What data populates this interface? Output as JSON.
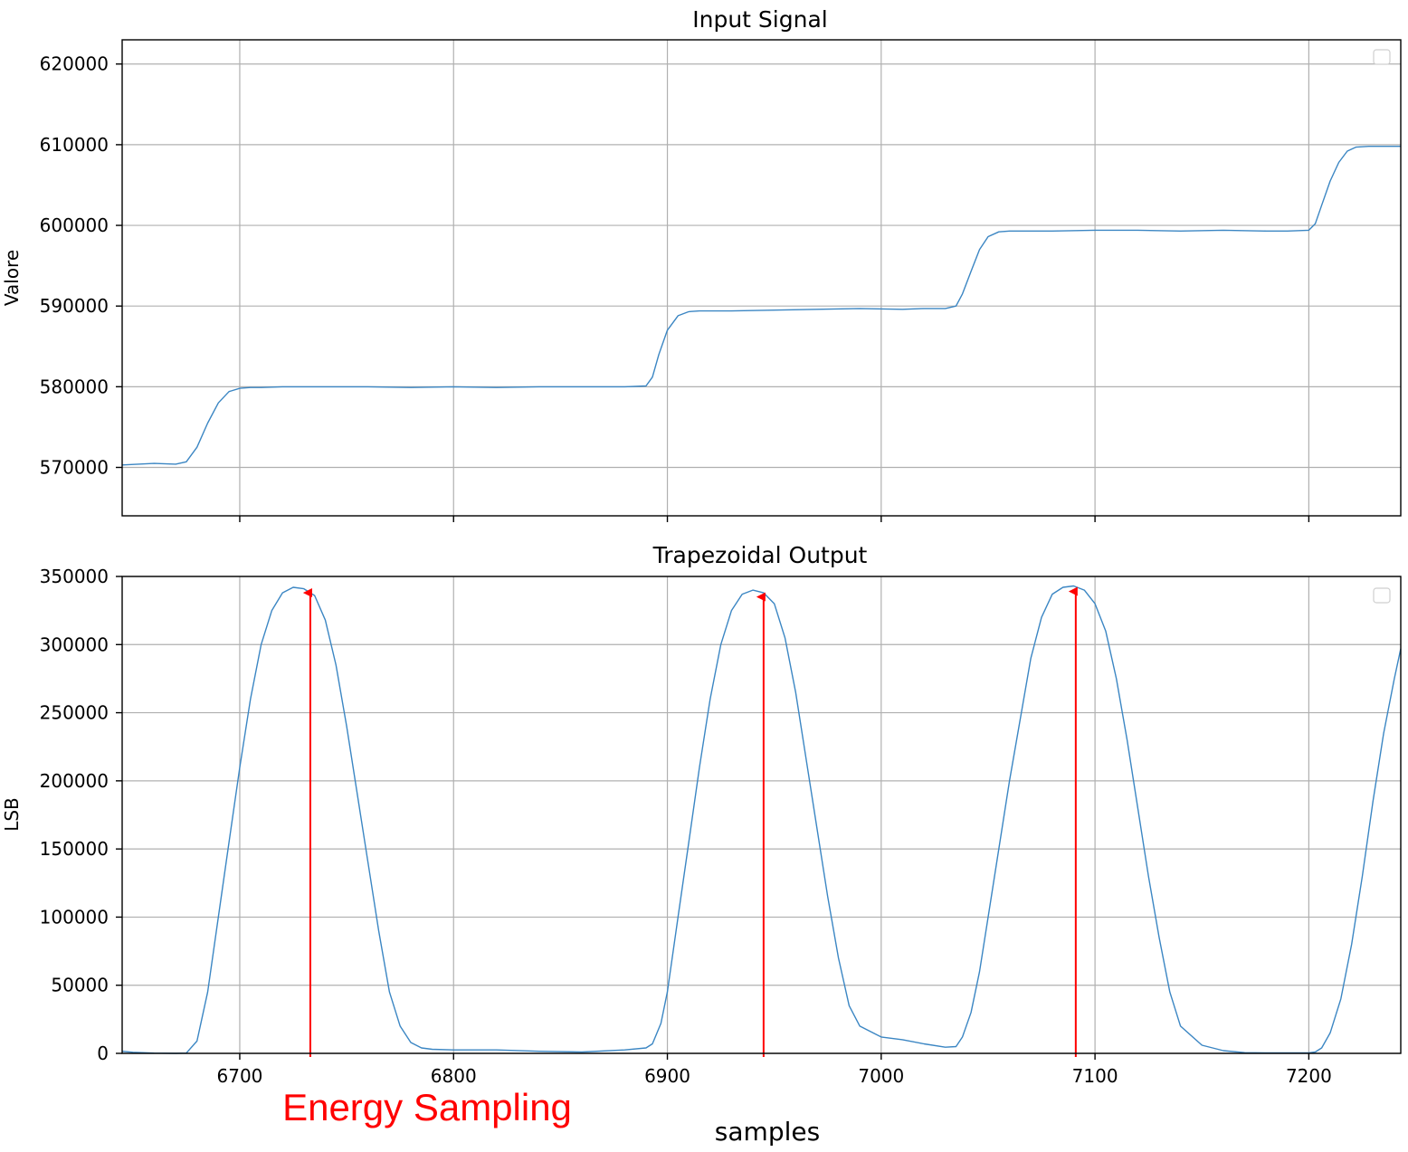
{
  "colors": {
    "series": "#3b86c3",
    "arrow": "#ff0000"
  },
  "annotation": {
    "text": "Energy Sampling"
  },
  "xlabel": "samples",
  "chart_data": [
    {
      "type": "line",
      "title": "Input Signal",
      "xlabel": "",
      "ylabel": "Valore",
      "xlim": [
        6645,
        7243
      ],
      "ylim": [
        564000,
        623000
      ],
      "xticks": [
        6700,
        6800,
        6900,
        7000,
        7100,
        7200
      ],
      "xtick_labels_visible": false,
      "yticks": [
        570000,
        580000,
        590000,
        600000,
        610000,
        620000
      ],
      "ytick_labels": [
        "570000",
        "580000",
        "590000",
        "600000",
        "610000",
        "620000"
      ],
      "grid": true,
      "legend": "top-right (empty)",
      "series": [
        {
          "x": [
            6645,
            6660,
            6670,
            6675,
            6680,
            6685,
            6690,
            6695,
            6700,
            6705,
            6710,
            6720,
            6740,
            6760,
            6780,
            6800,
            6820,
            6840,
            6860,
            6880,
            6890,
            6893,
            6896,
            6900,
            6905,
            6910,
            6915,
            6930,
            6950,
            6970,
            6990,
            7010,
            7020,
            7030,
            7035,
            7038,
            7042,
            7046,
            7050,
            7055,
            7060,
            7080,
            7100,
            7120,
            7140,
            7160,
            7180,
            7190,
            7200,
            7203,
            7206,
            7210,
            7214,
            7218,
            7222,
            7228,
            7243
          ],
          "y": [
            570300,
            570500,
            570400,
            570700,
            572500,
            575500,
            578000,
            579400,
            579800,
            579900,
            579900,
            580000,
            580000,
            580000,
            579900,
            580000,
            579900,
            580000,
            580000,
            580000,
            580100,
            581200,
            584000,
            587000,
            588800,
            589300,
            589400,
            589400,
            589500,
            589600,
            589700,
            589600,
            589700,
            589700,
            590000,
            591500,
            594300,
            597000,
            598600,
            599200,
            599300,
            599300,
            599400,
            599400,
            599300,
            599400,
            599300,
            599300,
            599400,
            600200,
            602500,
            605500,
            607800,
            609200,
            609700,
            609800,
            609800
          ]
        }
      ]
    },
    {
      "type": "line",
      "title": "Trapezoidal Output",
      "xlabel": "samples",
      "ylabel": "LSB",
      "xlim": [
        6645,
        7243
      ],
      "ylim": [
        0,
        350000
      ],
      "xticks": [
        6700,
        6800,
        6900,
        7000,
        7100,
        7200
      ],
      "xtick_labels": [
        "6700",
        "6800",
        "6900",
        "7000",
        "7100",
        "7200"
      ],
      "yticks": [
        0,
        50000,
        100000,
        150000,
        200000,
        250000,
        300000,
        350000
      ],
      "ytick_labels": [
        "0",
        "50000",
        "100000",
        "150000",
        "200000",
        "250000",
        "300000",
        "350000"
      ],
      "grid": true,
      "legend": "top-right (empty)",
      "series": [
        {
          "x": [
            6645,
            6650,
            6660,
            6670,
            6675,
            6680,
            6685,
            6690,
            6695,
            6700,
            6705,
            6710,
            6715,
            6720,
            6725,
            6730,
            6735,
            6740,
            6745,
            6750,
            6755,
            6760,
            6765,
            6770,
            6775,
            6780,
            6785,
            6790,
            6800,
            6820,
            6840,
            6860,
            6880,
            6890,
            6893,
            6897,
            6900,
            6905,
            6910,
            6915,
            6920,
            6925,
            6930,
            6935,
            6940,
            6945,
            6950,
            6955,
            6960,
            6965,
            6970,
            6975,
            6980,
            6985,
            6990,
            7000,
            7010,
            7020,
            7030,
            7035,
            7038,
            7042,
            7046,
            7050,
            7055,
            7060,
            7065,
            7070,
            7075,
            7080,
            7085,
            7090,
            7095,
            7100,
            7105,
            7110,
            7115,
            7120,
            7125,
            7130,
            7135,
            7140,
            7150,
            7160,
            7170,
            7180,
            7190,
            7200,
            7203,
            7206,
            7210,
            7215,
            7220,
            7225,
            7230,
            7235,
            7240,
            7243
          ],
          "y": [
            1500,
            800,
            200,
            0,
            200,
            9000,
            45000,
            100000,
            155000,
            210000,
            260000,
            300000,
            325000,
            338000,
            342000,
            341000,
            336000,
            318000,
            285000,
            240000,
            190000,
            140000,
            90000,
            45000,
            20000,
            8000,
            4000,
            3000,
            2500,
            2500,
            1500,
            1000,
            2500,
            4000,
            7000,
            22000,
            45000,
            100000,
            155000,
            210000,
            260000,
            300000,
            325000,
            337000,
            340000,
            338000,
            330000,
            305000,
            265000,
            215000,
            165000,
            115000,
            70000,
            35000,
            20000,
            12000,
            10000,
            7000,
            4500,
            5000,
            12000,
            30000,
            60000,
            100000,
            150000,
            200000,
            245000,
            290000,
            320000,
            337000,
            342000,
            343000,
            340000,
            330000,
            310000,
            275000,
            230000,
            180000,
            130000,
            85000,
            45000,
            20000,
            6000,
            2000,
            500,
            300,
            300,
            300,
            1000,
            4000,
            15000,
            40000,
            80000,
            130000,
            185000,
            235000,
            275000,
            297000
          ]
        }
      ],
      "annotations": [
        {
          "x": 6733,
          "y": 342000
        },
        {
          "x": 6945,
          "y": 339000
        },
        {
          "x": 7091,
          "y": 343000
        }
      ]
    }
  ]
}
